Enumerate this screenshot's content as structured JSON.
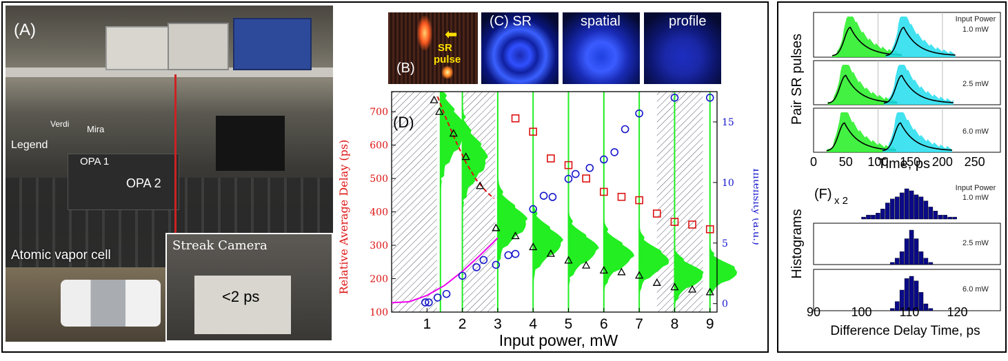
{
  "photo_panel": {
    "panel_label": "(A)",
    "labels": {
      "verdi": "Verdi",
      "mira": "Mira",
      "legend": "Legend",
      "opa1": "OPA 1",
      "opa2": "OPA 2"
    },
    "inset_cell": "Atomic vapor cell",
    "inset_streak": "Streak Camera",
    "streak_note": "<2 ps"
  },
  "panel_b": {
    "label": "(B)",
    "line1": "SR",
    "line2": "pulse"
  },
  "panel_c": {
    "title_parts": [
      "(C) SR",
      "spatial",
      "profile"
    ]
  },
  "colors": {
    "green": "#22ee22",
    "cyan": "#22ddee",
    "red": "#dd1111",
    "blue": "#1515cc",
    "magenta": "#ee00ee",
    "navy": "#0a0a88"
  },
  "chart_data": [
    {
      "id": "D",
      "type": "scatter",
      "panel_label": "(D)",
      "xlabel": "Input power, mW",
      "ylabel_left": "Relative Average Delay (ps)",
      "ylabel_right": "Intensity (a.u.)",
      "xlim": [
        0,
        9.2
      ],
      "ylim_left": [
        100,
        760
      ],
      "ylim_right": [
        -0.7,
        17.5
      ],
      "xticks": [
        1,
        2,
        3,
        4,
        5,
        6,
        7,
        8,
        9
      ],
      "yticks_left": [
        100,
        200,
        300,
        400,
        500,
        600,
        700
      ],
      "yticks_right": [
        0,
        5,
        10,
        15
      ],
      "series": [
        {
          "marker": "triangle",
          "color": "#000000",
          "x": [
            1.2,
            1.35,
            1.75,
            2.1,
            2.5,
            2.95,
            3.5,
            4.0,
            4.5,
            5.0,
            5.5,
            6.0,
            6.5,
            7.0,
            7.5,
            8.0,
            8.5,
            9.0
          ],
          "y": [
            735,
            700,
            635,
            565,
            478,
            352,
            328,
            295,
            275,
            255,
            240,
            225,
            220,
            210,
            188,
            175,
            168,
            160
          ]
        },
        {
          "marker": "square",
          "color": "#dd1111",
          "x": [
            3.5,
            4.0,
            4.5,
            5.0,
            5.5,
            6.0,
            6.5,
            7.0,
            7.5,
            8.0,
            8.5,
            9.0
          ],
          "y": [
            680,
            640,
            560,
            540,
            500,
            460,
            445,
            435,
            395,
            370,
            362,
            348
          ]
        },
        {
          "marker": "circle",
          "color": "#1515cc",
          "axis": "right",
          "x": [
            0.95,
            1.05,
            1.3,
            1.55,
            2.0,
            2.4,
            2.6,
            2.95,
            3.3,
            3.5,
            4.0,
            4.3,
            4.55,
            5.0,
            5.2,
            5.6,
            6.0,
            6.3,
            6.6,
            7.0,
            8.0,
            9.0
          ],
          "y": [
            0.1,
            0.1,
            0.5,
            0.8,
            2.3,
            3.0,
            3.6,
            3.2,
            4.0,
            4.1,
            7.8,
            8.9,
            8.8,
            10.3,
            10.7,
            11.2,
            11.9,
            12.5,
            14.4,
            15.7,
            17.0,
            17.0
          ]
        }
      ],
      "fit_curves": [
        {
          "color": "#dd1111",
          "style": "dashed",
          "x": [
            1.3,
            1.5,
            1.8,
            2.1,
            2.4,
            2.7,
            2.9
          ],
          "y": [
            745,
            690,
            615,
            548,
            495,
            458,
            440
          ]
        },
        {
          "color": "#ee00ee",
          "style": "solid",
          "x": [
            0.0,
            0.5,
            1.0,
            1.5,
            2.0,
            2.5,
            3.0
          ],
          "y": [
            128,
            131,
            150,
            180,
            222,
            270,
            322
          ]
        }
      ]
    },
    {
      "id": "E",
      "type": "line",
      "panel_label": "(E)",
      "xlabel": "Time, ps",
      "ylabel": "Pair SR pulses",
      "xlim": [
        0,
        290
      ],
      "xticks": [
        0,
        50,
        100,
        150,
        200,
        250
      ],
      "rows": [
        {
          "label_lines": [
            "Input Power",
            "1.0 mW"
          ],
          "peak1": 57,
          "peak2": 140
        },
        {
          "label_lines": [
            "2.5 mW"
          ],
          "peak1": 50,
          "peak2": 137
        },
        {
          "label_lines": [
            "6.0 mW"
          ],
          "peak1": 48,
          "peak2": 135
        }
      ]
    },
    {
      "id": "F",
      "type": "bar",
      "panel_label": "(F)",
      "panel_label_sub": "x 2",
      "xlabel": "Difference Delay Time, ps",
      "ylabel": "Histograms",
      "xlim": [
        90,
        129
      ],
      "xticks": [
        90,
        100,
        110,
        120
      ],
      "bin_width": 1,
      "rows": [
        {
          "label_lines": [
            "Input Power",
            "1.0 mW"
          ],
          "bins": [
            100,
            101,
            102,
            103,
            104,
            105,
            106,
            107,
            108,
            109,
            110,
            111,
            112,
            113,
            114,
            115,
            116,
            117,
            118,
            119
          ],
          "counts": [
            1,
            2,
            2,
            3,
            5,
            8,
            10,
            11,
            13,
            15,
            14,
            12,
            11,
            9,
            6,
            4,
            2,
            2,
            1,
            1
          ]
        },
        {
          "label_lines": [
            "2.5 mW"
          ],
          "bins": [
            106,
            107,
            108,
            109,
            110,
            111,
            112,
            113,
            114
          ],
          "counts": [
            1,
            3,
            6,
            12,
            16,
            12,
            6,
            3,
            1
          ]
        },
        {
          "label_lines": [
            "6.0 mW"
          ],
          "bins": [
            106,
            107,
            108,
            109,
            110,
            111,
            112,
            113,
            114
          ],
          "counts": [
            1,
            4,
            9,
            14,
            15,
            13,
            8,
            3,
            1
          ]
        }
      ]
    }
  ]
}
